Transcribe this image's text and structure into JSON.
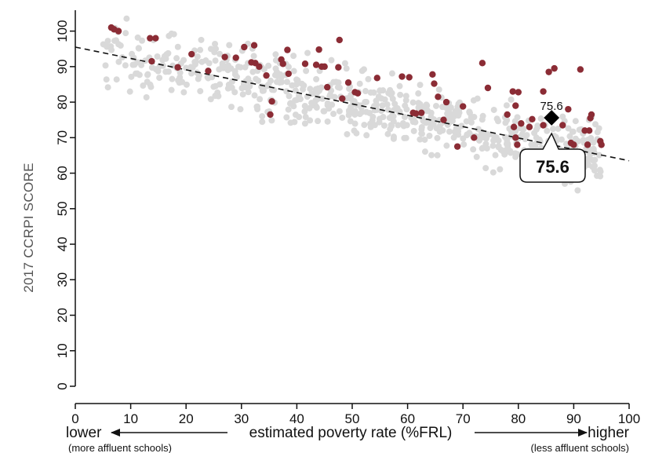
{
  "chart_data": {
    "type": "scatter",
    "title": "",
    "ylabel": "2017 CCRPI SCORE",
    "xlabel": "estimated poverty rate (%FRL)",
    "x_left_caption": "lower",
    "x_left_sub": "(more affluent schools)",
    "x_right_caption": "higher",
    "x_right_sub": "(less affluent schools)",
    "xlim": [
      0,
      100
    ],
    "ylim": [
      0,
      105
    ],
    "x_ticks": [
      0,
      10,
      20,
      30,
      40,
      50,
      60,
      70,
      80,
      90,
      100
    ],
    "y_ticks": [
      0,
      10,
      20,
      30,
      40,
      50,
      60,
      70,
      80,
      90,
      100
    ],
    "grid": false,
    "trendline": {
      "x": [
        0,
        100
      ],
      "y": [
        95.5,
        63.5
      ]
    },
    "highlight_point": {
      "x": 86,
      "y": 75.6,
      "label": "75.6",
      "callout_label": "75.6"
    },
    "colors": {
      "background_points": "#d9d9d9",
      "highlight_points": "#8b2c35",
      "trendline": "#111111",
      "highlight_marker": "#000000"
    },
    "series": [
      {
        "role": "highlighted schools",
        "points": [
          [
            6.5,
            101
          ],
          [
            7,
            100.5
          ],
          [
            7.8,
            100
          ],
          [
            13.5,
            98
          ],
          [
            14.5,
            98
          ],
          [
            13.8,
            91.5
          ],
          [
            18.5,
            89.8
          ],
          [
            21,
            93.5
          ],
          [
            24,
            88.8
          ],
          [
            27,
            92.7
          ],
          [
            29,
            92.5
          ],
          [
            30.5,
            95.5
          ],
          [
            31.8,
            91.2
          ],
          [
            32.3,
            96
          ],
          [
            32.5,
            91
          ],
          [
            33.2,
            90
          ],
          [
            34.5,
            87.5
          ],
          [
            35.2,
            76.5
          ],
          [
            35.5,
            80.2
          ],
          [
            37.2,
            92
          ],
          [
            37.5,
            90.8
          ],
          [
            38.3,
            94.7
          ],
          [
            38.5,
            88
          ],
          [
            41.5,
            90.8
          ],
          [
            43.5,
            90.5
          ],
          [
            44,
            94.8
          ],
          [
            44.5,
            90
          ],
          [
            45,
            90
          ],
          [
            45.5,
            84.2
          ],
          [
            47.5,
            89.8
          ],
          [
            47.7,
            97.5
          ],
          [
            48.2,
            81
          ],
          [
            49.3,
            85.5
          ],
          [
            50.5,
            82.8
          ],
          [
            51,
            82.5
          ],
          [
            54.5,
            86.8
          ],
          [
            59,
            87.2
          ],
          [
            60.3,
            87
          ],
          [
            61,
            77
          ],
          [
            61.5,
            76.8
          ],
          [
            62.5,
            77
          ],
          [
            64.5,
            87.8
          ],
          [
            64.8,
            85.2
          ],
          [
            65.5,
            81.5
          ],
          [
            66.5,
            75
          ],
          [
            67,
            80
          ],
          [
            69,
            67.5
          ],
          [
            70,
            78.8
          ],
          [
            72,
            70
          ],
          [
            73.5,
            91
          ],
          [
            74.5,
            84
          ],
          [
            78,
            76.5
          ],
          [
            79,
            83
          ],
          [
            79.2,
            73
          ],
          [
            79.5,
            79
          ],
          [
            79.5,
            70
          ],
          [
            79.8,
            68
          ],
          [
            80,
            82.8
          ],
          [
            80.5,
            74
          ],
          [
            82,
            73
          ],
          [
            82.5,
            75.2
          ],
          [
            84.5,
            73.5
          ],
          [
            84.5,
            83
          ],
          [
            85.5,
            88.5
          ],
          [
            86.5,
            89.5
          ],
          [
            88,
            73.5
          ],
          [
            89,
            78
          ],
          [
            89.5,
            68.5
          ],
          [
            90,
            68
          ],
          [
            91.2,
            89.2
          ],
          [
            92,
            72
          ],
          [
            92.5,
            68
          ],
          [
            92.8,
            72
          ],
          [
            93,
            75.5
          ],
          [
            93.2,
            76.5
          ],
          [
            94.8,
            69
          ],
          [
            95,
            68
          ]
        ]
      }
    ]
  }
}
